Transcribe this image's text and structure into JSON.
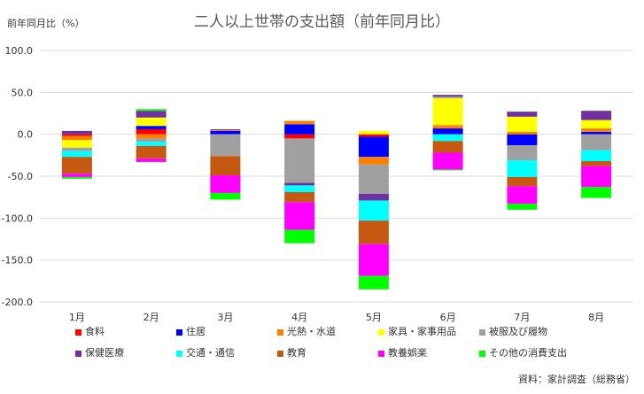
{
  "chart_data": {
    "type": "bar",
    "stacked": true,
    "title": "二人以上世帯の支出額（前年同月比）",
    "ylabel": "前年同月比（%）",
    "source": "資料：家計調査（総務省）",
    "categories": [
      "1月",
      "2月",
      "3月",
      "4月",
      "5月",
      "6月",
      "7月",
      "8月"
    ],
    "ylim": [
      -200,
      100
    ],
    "yticks": [
      100,
      50,
      0,
      -50,
      -100,
      -150,
      -200
    ],
    "ytick_labels": [
      "100.0",
      "50.0",
      "0.0",
      "-50.0",
      "-100.0",
      "-150.0",
      "-200.0"
    ],
    "grid": true,
    "legend_position": "bottom",
    "series": [
      {
        "name": "食料",
        "color": "#ff0000",
        "values": [
          -2,
          6,
          0,
          -5,
          -3,
          0,
          0,
          0
        ]
      },
      {
        "name": "住居",
        "color": "#0000ff",
        "values": [
          0,
          4,
          4,
          12,
          -24,
          7,
          -13,
          3
        ]
      },
      {
        "name": "光熱・水道",
        "color": "#ff7f00",
        "values": [
          -5,
          -5,
          1,
          4,
          -9,
          4,
          3,
          4
        ]
      },
      {
        "name": "家具・家事用品",
        "color": "#ffff00",
        "values": [
          -9,
          10,
          0,
          0,
          4,
          32,
          18,
          10
        ]
      },
      {
        "name": "被服及び履物",
        "color": "#a0a0a0",
        "values": [
          -4,
          -4,
          -26,
          -53,
          -35,
          2,
          -18,
          -19
        ]
      },
      {
        "name": "保健医療",
        "color": "#7030a0",
        "values": [
          4,
          8,
          1,
          -3,
          -8,
          2,
          6,
          11
        ]
      },
      {
        "name": "交通・通信",
        "color": "#00ffff",
        "values": [
          -7,
          -5,
          0,
          -8,
          -24,
          -8,
          -20,
          -13
        ]
      },
      {
        "name": "教育",
        "color": "#c65911",
        "values": [
          -20,
          -15,
          -23,
          -12,
          -28,
          -14,
          -11,
          -6
        ]
      },
      {
        "name": "教養娯楽",
        "color": "#ff00ff",
        "values": [
          -4,
          -4,
          -21,
          -33,
          -38,
          -20,
          -21,
          -25
        ]
      },
      {
        "name": "その他の消費支出",
        "color": "#00ff00",
        "values": [
          -2,
          2,
          -8,
          -16,
          -16,
          -1,
          -7,
          -13
        ]
      }
    ]
  }
}
